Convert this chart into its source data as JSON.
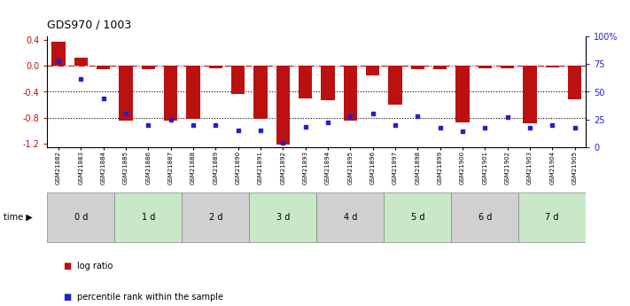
{
  "title": "GDS970 / 1003",
  "samples": [
    "GSM21882",
    "GSM21883",
    "GSM21884",
    "GSM21885",
    "GSM21886",
    "GSM21887",
    "GSM21888",
    "GSM21889",
    "GSM21890",
    "GSM21891",
    "GSM21892",
    "GSM21893",
    "GSM21894",
    "GSM21895",
    "GSM21896",
    "GSM21897",
    "GSM21898",
    "GSM21899",
    "GSM21900",
    "GSM21901",
    "GSM21902",
    "GSM21903",
    "GSM21904",
    "GSM21905"
  ],
  "log_ratio": [
    0.38,
    0.13,
    -0.05,
    -0.85,
    -0.05,
    -0.85,
    -0.82,
    -0.04,
    -0.43,
    -0.82,
    -1.22,
    -0.5,
    -0.53,
    -0.85,
    -0.15,
    -0.6,
    -0.05,
    -0.05,
    -0.87,
    -0.04,
    -0.04,
    -0.89,
    -0.02,
    -0.52
  ],
  "percentile_rank": [
    78,
    62,
    44,
    30,
    20,
    25,
    20,
    20,
    15,
    15,
    4,
    18,
    22,
    28,
    30,
    20,
    28,
    17,
    14,
    17,
    27,
    17,
    20,
    17
  ],
  "time_groups": {
    "0 d": [
      0,
      1,
      2
    ],
    "1 d": [
      3,
      4,
      5
    ],
    "2 d": [
      6,
      7,
      8
    ],
    "3 d": [
      9,
      10,
      11
    ],
    "4 d": [
      12,
      13,
      14
    ],
    "5 d": [
      15,
      16,
      17
    ],
    "6 d": [
      18,
      19,
      20
    ],
    "7 d": [
      21,
      22,
      23
    ]
  },
  "group_colors": [
    "#d0d0d0",
    "#c8e8c8",
    "#d0d0d0",
    "#c8e8c8",
    "#d0d0d0",
    "#c8e8c8",
    "#d0d0d0",
    "#c8e8c8"
  ],
  "bar_color": "#bb1111",
  "dot_color": "#2222cc",
  "ylim_left": [
    -1.25,
    0.45
  ],
  "ylim_right": [
    0,
    100
  ],
  "yticks_left": [
    -1.2,
    -0.8,
    -0.4,
    0.0,
    0.4
  ],
  "yticks_right": [
    0,
    25,
    50,
    75,
    100
  ],
  "hline_y": 0.0,
  "dotted_lines": [
    -0.4,
    -0.8
  ],
  "background_color": "#ffffff"
}
